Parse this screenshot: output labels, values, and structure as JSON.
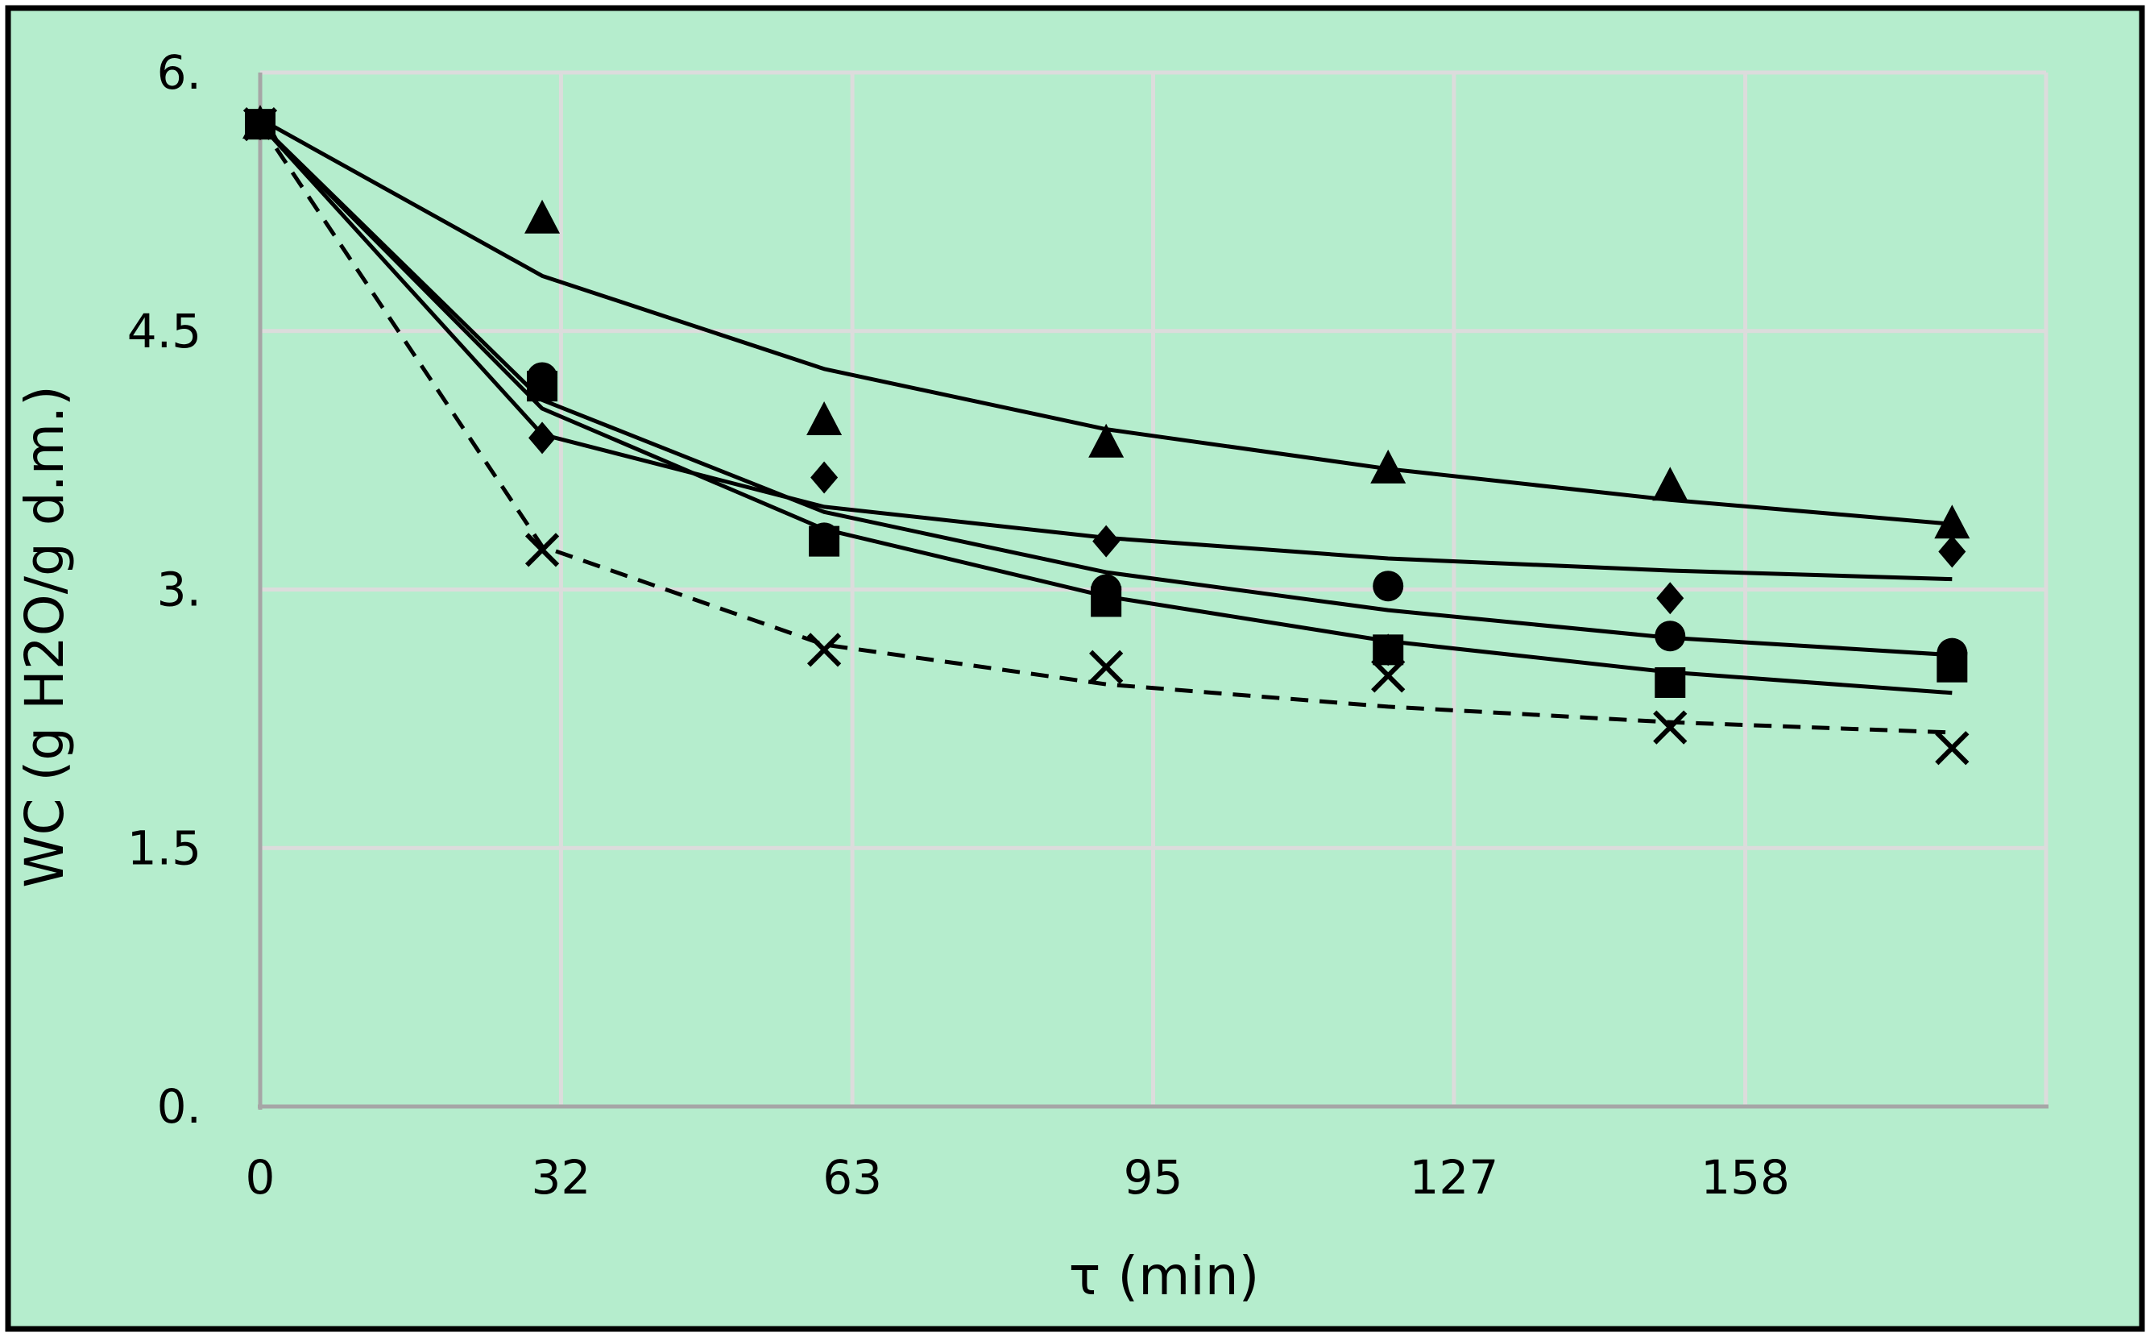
{
  "chart_data": {
    "type": "scatter",
    "title": "",
    "xlabel": "τ (min)",
    "ylabel": "WC (g H2O/g d.m.)",
    "x_ticks": [
      0,
      32,
      63,
      95,
      127,
      158
    ],
    "x_tick_labels": [
      "0",
      "32",
      "63",
      "95",
      "127",
      "158"
    ],
    "y_ticks": [
      0,
      1.5,
      3,
      4.5,
      6
    ],
    "y_tick_labels": [
      "0.",
      "1.5",
      "3.",
      "4.5",
      "6."
    ],
    "xlim": [
      0,
      190
    ],
    "ylim": [
      0,
      6
    ],
    "grid": true,
    "legend": "none",
    "colors": {
      "background": "#b5edcd",
      "frame": "#000000",
      "grid": "#dcdcdc",
      "axis": "#a6a6a6",
      "marks": "#000000"
    },
    "series": [
      {
        "marker": "triangle",
        "points_x": [
          0,
          30,
          60,
          90,
          120,
          150,
          180
        ],
        "points_y": [
          5.7,
          5.15,
          3.98,
          3.85,
          3.7,
          3.6,
          3.38
        ],
        "fit_x": [
          0,
          30,
          60,
          90,
          120,
          150,
          180
        ],
        "fit_y": [
          5.73,
          4.82,
          4.28,
          3.93,
          3.7,
          3.52,
          3.38
        ],
        "line_style": "solid"
      },
      {
        "marker": "diamond",
        "points_x": [
          0,
          30,
          60,
          90,
          120,
          150,
          180
        ],
        "points_y": [
          5.7,
          3.88,
          3.65,
          3.28,
          2.65,
          2.95,
          3.22
        ],
        "fit_x": [
          0,
          30,
          60,
          90,
          120,
          150,
          180
        ],
        "fit_y": [
          5.7,
          3.9,
          3.48,
          3.3,
          3.18,
          3.11,
          3.06
        ],
        "line_style": "solid"
      },
      {
        "marker": "circle",
        "points_x": [
          0,
          30,
          60,
          90,
          120,
          150,
          180
        ],
        "points_y": [
          5.7,
          4.23,
          3.3,
          3.0,
          3.02,
          2.73,
          2.63
        ],
        "fit_x": [
          0,
          30,
          60,
          90,
          120,
          150,
          180
        ],
        "fit_y": [
          5.7,
          4.1,
          3.45,
          3.1,
          2.88,
          2.72,
          2.62
        ],
        "line_style": "solid"
      },
      {
        "marker": "square",
        "points_x": [
          0,
          30,
          60,
          90,
          120,
          150,
          180
        ],
        "points_y": [
          5.7,
          4.18,
          3.28,
          2.93,
          2.65,
          2.46,
          2.55
        ],
        "fit_x": [
          0,
          30,
          60,
          90,
          120,
          150,
          180
        ],
        "fit_y": [
          5.7,
          4.05,
          3.35,
          2.96,
          2.7,
          2.52,
          2.4
        ],
        "line_style": "solid"
      },
      {
        "marker": "cross",
        "points_x": [
          0,
          30,
          60,
          90,
          120,
          150,
          180
        ],
        "points_y": [
          5.7,
          3.23,
          2.65,
          2.55,
          2.5,
          2.2,
          2.08
        ],
        "fit_x": [
          0,
          30,
          60,
          90,
          120,
          150,
          180
        ],
        "fit_y": [
          5.7,
          3.25,
          2.68,
          2.45,
          2.32,
          2.23,
          2.17
        ],
        "line_style": "dashed"
      }
    ]
  }
}
